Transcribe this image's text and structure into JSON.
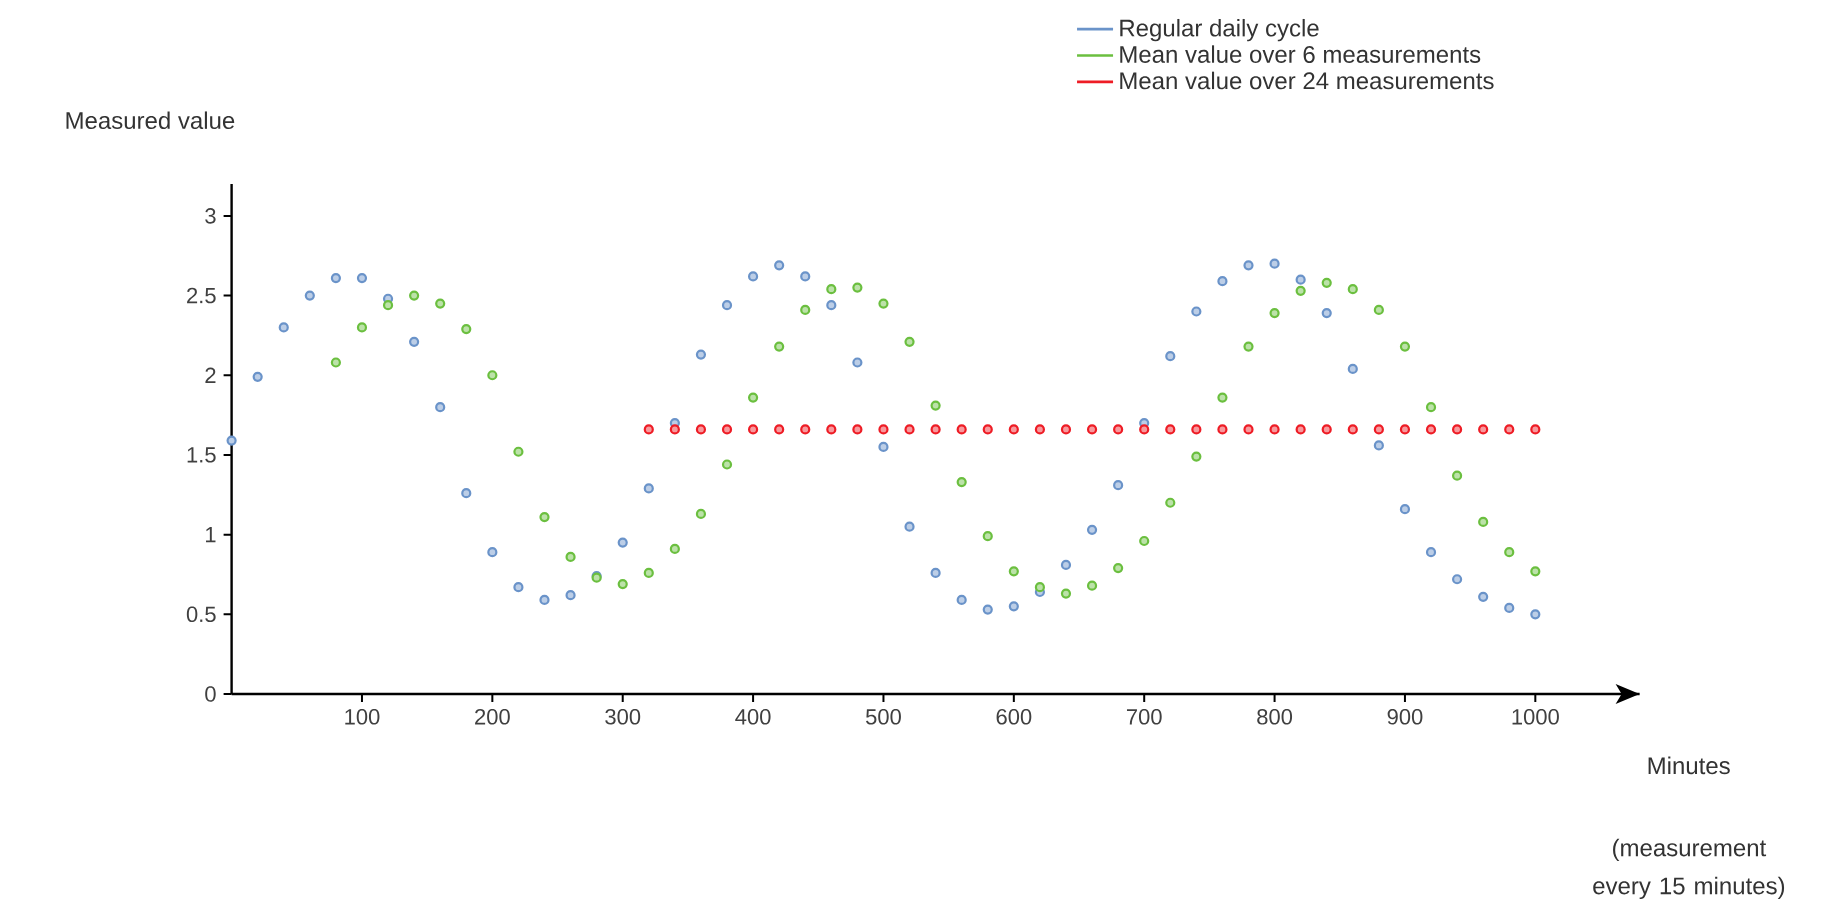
{
  "chart_data": {
    "type": "scatter",
    "xlabel": "Minutes",
    "ylabel": "Measured value",
    "annotations": [
      "(measurement every 15 minutes)"
    ],
    "xlim": [
      0,
      1080
    ],
    "ylim": [
      0,
      3.2
    ],
    "xticks": [
      100,
      200,
      300,
      400,
      500,
      600,
      700,
      800,
      900,
      1000
    ],
    "yticks": [
      0,
      0.5,
      1,
      1.5,
      2,
      2.5,
      3
    ],
    "legend": "top right",
    "marker": "circle",
    "series": [
      {
        "name": "Regular daily cycle",
        "color": "#6a93c9",
        "x": [
          0,
          20,
          40,
          60,
          80,
          100,
          120,
          140,
          160,
          180,
          200,
          220,
          240,
          260,
          280,
          300,
          320,
          340,
          360,
          380,
          400,
          420,
          440,
          460,
          480,
          500,
          520,
          540,
          560,
          580,
          600,
          620,
          640,
          660,
          680,
          700,
          720,
          740,
          760,
          780,
          800,
          820,
          840,
          860,
          880,
          900,
          920,
          940,
          960,
          980,
          1000
        ],
        "values": [
          1.59,
          1.99,
          2.3,
          2.5,
          2.61,
          2.61,
          2.48,
          2.21,
          1.8,
          1.26,
          0.89,
          0.67,
          0.59,
          0.62,
          0.74,
          0.95,
          1.29,
          1.7,
          2.13,
          2.44,
          2.62,
          2.69,
          2.62,
          2.44,
          2.08,
          1.55,
          1.05,
          0.76,
          0.59,
          0.53,
          0.55,
          0.64,
          0.81,
          1.03,
          1.31,
          1.7,
          2.12,
          2.4,
          2.59,
          2.69,
          2.7,
          2.6,
          2.39,
          2.04,
          1.56,
          1.16,
          0.89,
          0.72,
          0.61,
          0.54,
          0.5
        ]
      },
      {
        "name": "Mean value over 6 measurements",
        "color": "#6bbf3f",
        "x": [
          80,
          100,
          120,
          140,
          160,
          180,
          200,
          220,
          240,
          260,
          280,
          300,
          320,
          340,
          360,
          380,
          400,
          420,
          440,
          460,
          480,
          500,
          520,
          540,
          560,
          580,
          600,
          620,
          640,
          660,
          680,
          700,
          720,
          740,
          760,
          780,
          800,
          820,
          840,
          860,
          880,
          900,
          920,
          940,
          960,
          980,
          1000
        ],
        "values": [
          2.08,
          2.3,
          2.44,
          2.5,
          2.45,
          2.29,
          2.0,
          1.52,
          1.11,
          0.86,
          0.73,
          0.69,
          0.76,
          0.91,
          1.13,
          1.44,
          1.86,
          2.18,
          2.41,
          2.54,
          2.55,
          2.45,
          2.21,
          1.81,
          1.33,
          0.99,
          0.77,
          0.67,
          0.63,
          0.68,
          0.79,
          0.96,
          1.2,
          1.49,
          1.86,
          2.18,
          2.39,
          2.53,
          2.58,
          2.54,
          2.41,
          2.18,
          1.8,
          1.37,
          1.08,
          0.89,
          0.77
        ]
      },
      {
        "name": "Mean value over 24 measurements",
        "color": "#ee1c25",
        "x": [
          320,
          340,
          360,
          380,
          400,
          420,
          440,
          460,
          480,
          500,
          520,
          540,
          560,
          580,
          600,
          620,
          640,
          660,
          680,
          700,
          720,
          740,
          760,
          780,
          800,
          820,
          840,
          860,
          880,
          900,
          920,
          940,
          960,
          980,
          1000
        ],
        "values": [
          1.66,
          1.66,
          1.66,
          1.66,
          1.66,
          1.66,
          1.66,
          1.66,
          1.66,
          1.66,
          1.66,
          1.66,
          1.66,
          1.66,
          1.66,
          1.66,
          1.66,
          1.66,
          1.66,
          1.66,
          1.66,
          1.66,
          1.66,
          1.66,
          1.66,
          1.66,
          1.66,
          1.66,
          1.66,
          1.66,
          1.66,
          1.66,
          1.66,
          1.66,
          1.66
        ]
      }
    ]
  }
}
